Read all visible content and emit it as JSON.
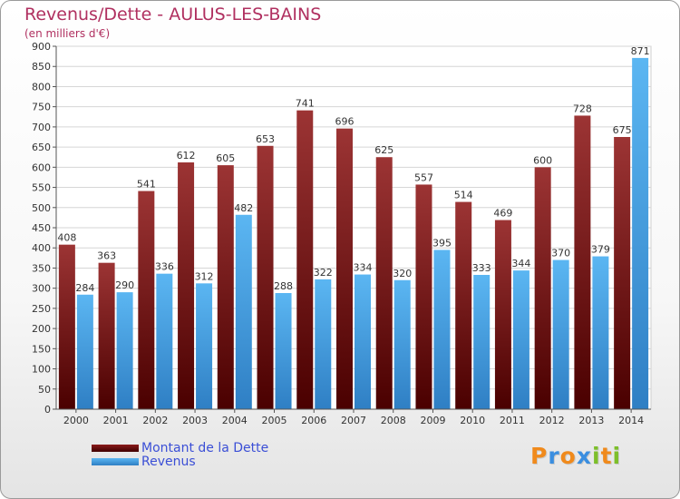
{
  "header": {
    "title": "Revenus/Dette - AULUS-LES-BAINS",
    "subtitle": "(en milliers d'€)"
  },
  "chart_data": {
    "type": "bar",
    "title": "Revenus/Dette - AULUS-LES-BAINS",
    "ylabel": "(en milliers d'€)",
    "xlabel": "",
    "ylim": [
      0,
      900
    ],
    "yticks": [
      0,
      50,
      100,
      150,
      200,
      250,
      300,
      350,
      400,
      450,
      500,
      550,
      600,
      650,
      700,
      750,
      800,
      850,
      900
    ],
    "grid": true,
    "legend_position": "bottom-left",
    "categories": [
      "2000",
      "2001",
      "2002",
      "2003",
      "2004",
      "2005",
      "2006",
      "2007",
      "2008",
      "2009",
      "2010",
      "2011",
      "2012",
      "2013",
      "2014"
    ],
    "series": [
      {
        "name": "Montant de la Dette",
        "color": "#8b1a1a",
        "values": [
          408,
          363,
          541,
          612,
          605,
          653,
          741,
          696,
          625,
          557,
          514,
          469,
          600,
          728,
          675
        ]
      },
      {
        "name": "Revenus",
        "color": "#3a9ee4",
        "values": [
          284,
          290,
          336,
          312,
          482,
          288,
          322,
          334,
          320,
          395,
          333,
          344,
          370,
          379,
          871
        ]
      }
    ]
  },
  "legend": {
    "items": [
      {
        "label": "Montant de la Dette",
        "color": "#6a0f0f"
      },
      {
        "label": "Revenus",
        "color": "#3a9ee4"
      }
    ]
  },
  "brand": {
    "letters": [
      "P",
      "r",
      "o",
      "x",
      "i",
      "t",
      "i"
    ],
    "colors": [
      "#f08a1c",
      "#3a8ee0",
      "#f08a1c",
      "#3a8ee0",
      "#7dbf2a",
      "#f08a1c",
      "#7dbf2a"
    ]
  }
}
